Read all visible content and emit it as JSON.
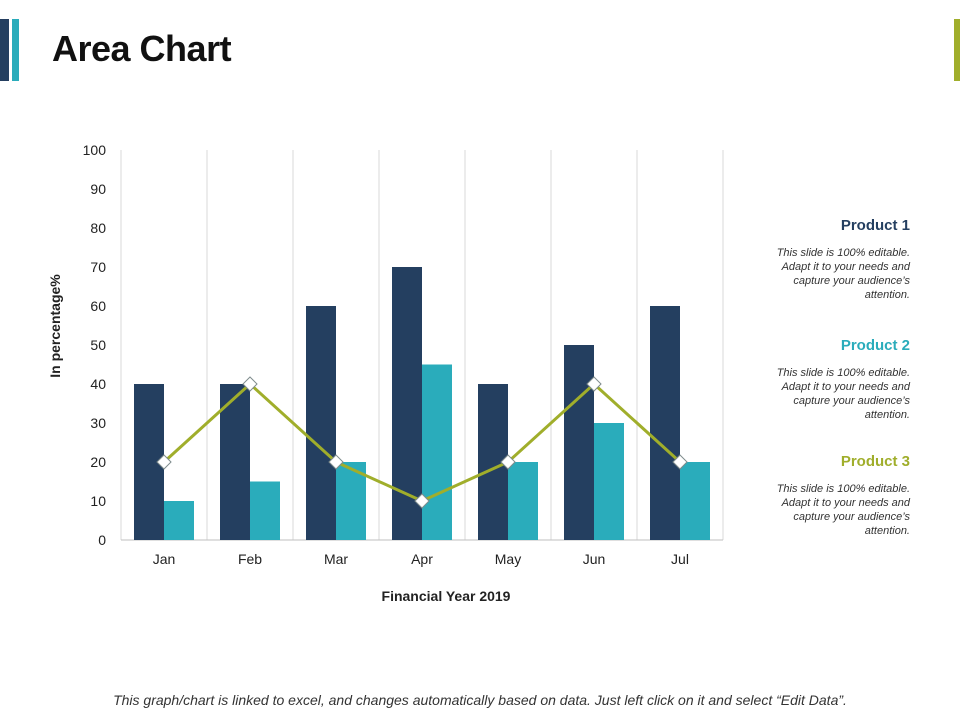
{
  "slide": {
    "title": "Area Chart",
    "footnote": "This graph/chart is linked to excel, and changes automatically based on data. Just left click on it and select “Edit Data”."
  },
  "colors": {
    "product1": "#243f60",
    "product2": "#2aacbb",
    "product3": "#a0ae2b",
    "grid": "#d9d9d9",
    "axis": "#bfbfbf"
  },
  "legend": [
    {
      "name": "Product 1",
      "description": "This slide is 100% editable. Adapt it to your needs and capture your audience’s attention."
    },
    {
      "name": "Product 2",
      "description": "This slide is 100% editable. Adapt it to your needs and capture your audience’s attention."
    },
    {
      "name": "Product 3",
      "description": "This slide is 100% editable. Adapt it to your needs and capture your audience’s attention."
    }
  ],
  "chart_data": {
    "type": "bar",
    "categories": [
      "Jan",
      "Feb",
      "Mar",
      "Apr",
      "May",
      "Jun",
      "Jul"
    ],
    "series": [
      {
        "name": "Product 1",
        "type": "bar",
        "values": [
          40,
          40,
          60,
          70,
          40,
          50,
          60
        ]
      },
      {
        "name": "Product 2",
        "type": "bar",
        "values": [
          10,
          15,
          20,
          45,
          20,
          30,
          20
        ]
      },
      {
        "name": "Product 3",
        "type": "line",
        "values": [
          20,
          40,
          20,
          10,
          20,
          40,
          20
        ]
      }
    ],
    "title": "",
    "xlabel": "Financial Year 2019",
    "ylabel": "In percentage%",
    "ylim": [
      0,
      100
    ],
    "yticks": [
      0,
      10,
      20,
      30,
      40,
      50,
      60,
      70,
      80,
      90,
      100
    ],
    "grid": "vertical-category-separators",
    "legend_position": "right"
  }
}
